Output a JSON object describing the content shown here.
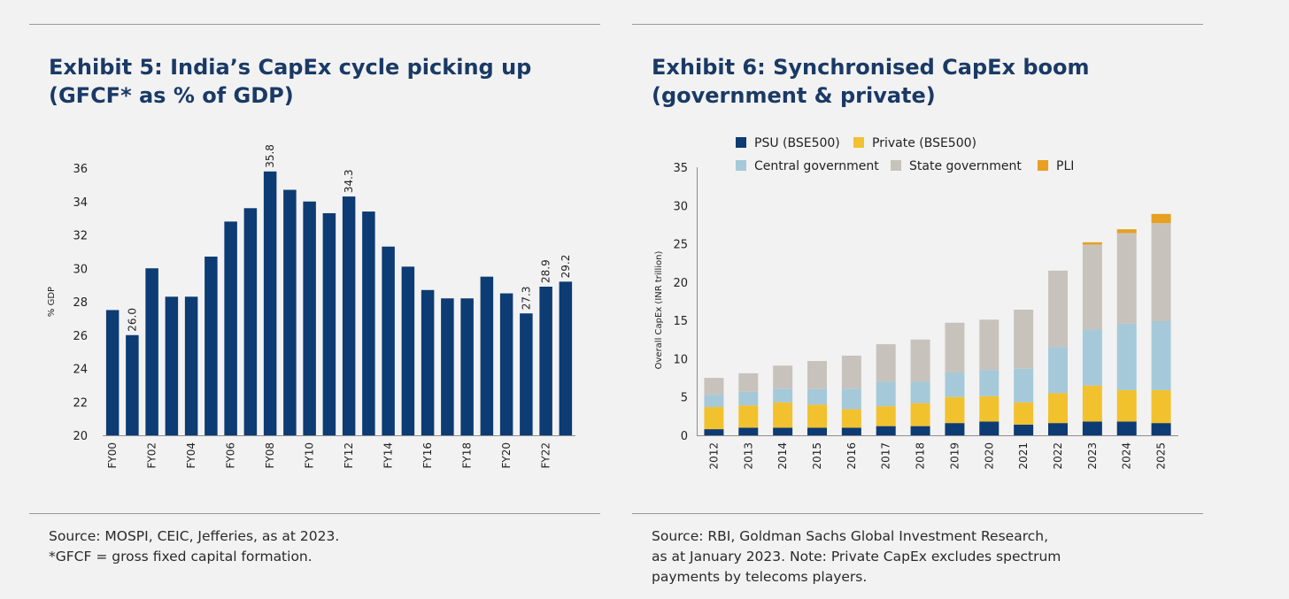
{
  "left": {
    "title_line1": "Exhibit 5: India’s CapEx cycle picking up",
    "title_line2": "(GFCF* as % of GDP)",
    "source_line1": "Source: MOSPI, CEIC, Jefferies, as at 2023.",
    "source_line2": "*GFCF = gross fixed capital formation."
  },
  "right": {
    "title_line1": "Exhibit 6: Synchronised CapEx boom",
    "title_line2": "(government & private)",
    "source_line1": "Source: RBI, Goldman Sachs Global Investment Research,",
    "source_line2": "as at January 2023. Note: Private CapEx excludes spectrum",
    "source_line3": "payments by telecoms players."
  },
  "chart_data": [
    {
      "type": "bar",
      "ylabel": "% GDP",
      "ylim": [
        20,
        36
      ],
      "yticks": [
        20,
        22,
        24,
        26,
        28,
        30,
        32,
        34,
        36
      ],
      "bar_color": "#0d3b73",
      "categories": [
        "FY00",
        "FY01",
        "FY02",
        "FY03",
        "FY04",
        "FY05",
        "FY06",
        "FY07",
        "FY08",
        "FY09",
        "FY10",
        "FY11",
        "FY12",
        "FY13",
        "FY14",
        "FY15",
        "FY16",
        "FY17",
        "FY18",
        "FY19",
        "FY20",
        "FY21",
        "FY22",
        "FY23"
      ],
      "tick_labels": [
        "FY00",
        "",
        "FY02",
        "",
        "FY04",
        "",
        "FY06",
        "",
        "FY08",
        "",
        "FY10",
        "",
        "FY12",
        "",
        "FY14",
        "",
        "FY16",
        "",
        "FY18",
        "",
        "FY20",
        "",
        "FY22",
        ""
      ],
      "values": [
        27.5,
        26.0,
        30.0,
        28.3,
        28.3,
        30.7,
        32.8,
        33.6,
        35.8,
        34.7,
        34.0,
        33.3,
        34.3,
        33.4,
        31.3,
        30.1,
        28.7,
        28.2,
        28.2,
        29.5,
        28.5,
        27.3,
        28.9,
        29.2
      ],
      "data_labels": [
        "",
        "26.0",
        "",
        "",
        "",
        "",
        "",
        "",
        "35.8",
        "",
        "",
        "",
        "34.3",
        "",
        "",
        "",
        "",
        "",
        "",
        "",
        "",
        "27.3",
        "28.9",
        "29.2"
      ]
    },
    {
      "type": "bar",
      "stacked": true,
      "ylabel": "Overall CapEx (INR trillion)",
      "ylim": [
        0,
        35
      ],
      "yticks": [
        0,
        5,
        10,
        15,
        20,
        25,
        30,
        35
      ],
      "categories": [
        "2012",
        "2013",
        "2014",
        "2015",
        "2016",
        "2017",
        "2018",
        "2019",
        "2020",
        "2021",
        "2022",
        "2023",
        "2024",
        "2025"
      ],
      "legend_position": "top",
      "series": [
        {
          "name": "PSU (BSE500)",
          "color": "#0d3b73",
          "values": [
            0.8,
            1.0,
            1.0,
            1.0,
            1.0,
            1.2,
            1.2,
            1.6,
            1.8,
            1.4,
            1.6,
            1.8,
            1.8,
            1.6
          ]
        },
        {
          "name": "Private (BSE500)",
          "color": "#f2c12e",
          "values": [
            2.9,
            2.9,
            3.3,
            3.0,
            2.4,
            2.6,
            3.0,
            3.4,
            3.3,
            2.9,
            3.9,
            4.7,
            4.1,
            4.3
          ]
        },
        {
          "name": "Central government",
          "color": "#a5c9d9",
          "values": [
            1.6,
            1.8,
            1.8,
            2.1,
            2.7,
            3.2,
            2.8,
            3.2,
            3.4,
            4.4,
            6.0,
            7.3,
            8.7,
            9.0
          ]
        },
        {
          "name": "State government",
          "color": "#c7c3bc",
          "values": [
            2.2,
            2.4,
            3.0,
            3.6,
            4.3,
            4.9,
            5.5,
            6.5,
            6.6,
            7.7,
            10.0,
            11.1,
            11.8,
            12.8
          ]
        },
        {
          "name": "PLI",
          "color": "#e8a021",
          "values": [
            0,
            0,
            0,
            0,
            0,
            0,
            0,
            0,
            0,
            0,
            0,
            0.3,
            0.5,
            1.2
          ]
        }
      ]
    }
  ]
}
